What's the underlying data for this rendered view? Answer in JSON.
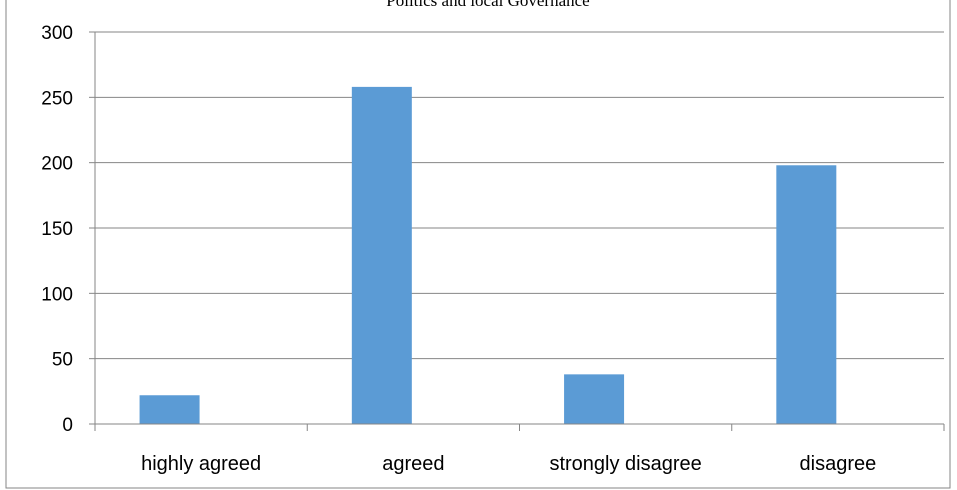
{
  "chart_data": {
    "type": "bar",
    "title": "Politics and local Governance",
    "xlabel": "",
    "ylabel": "",
    "categories": [
      "highly agreed",
      "agreed",
      "strongly disagree",
      "disagree"
    ],
    "values": [
      22,
      258,
      38,
      198
    ],
    "ylim": [
      0,
      300
    ],
    "yticks": [
      0,
      50,
      100,
      150,
      200,
      250,
      300
    ],
    "grid": true,
    "legend": "none",
    "bar_color": "#5B9BD5",
    "gridline_color": "#868686",
    "axis_color": "#868686"
  }
}
